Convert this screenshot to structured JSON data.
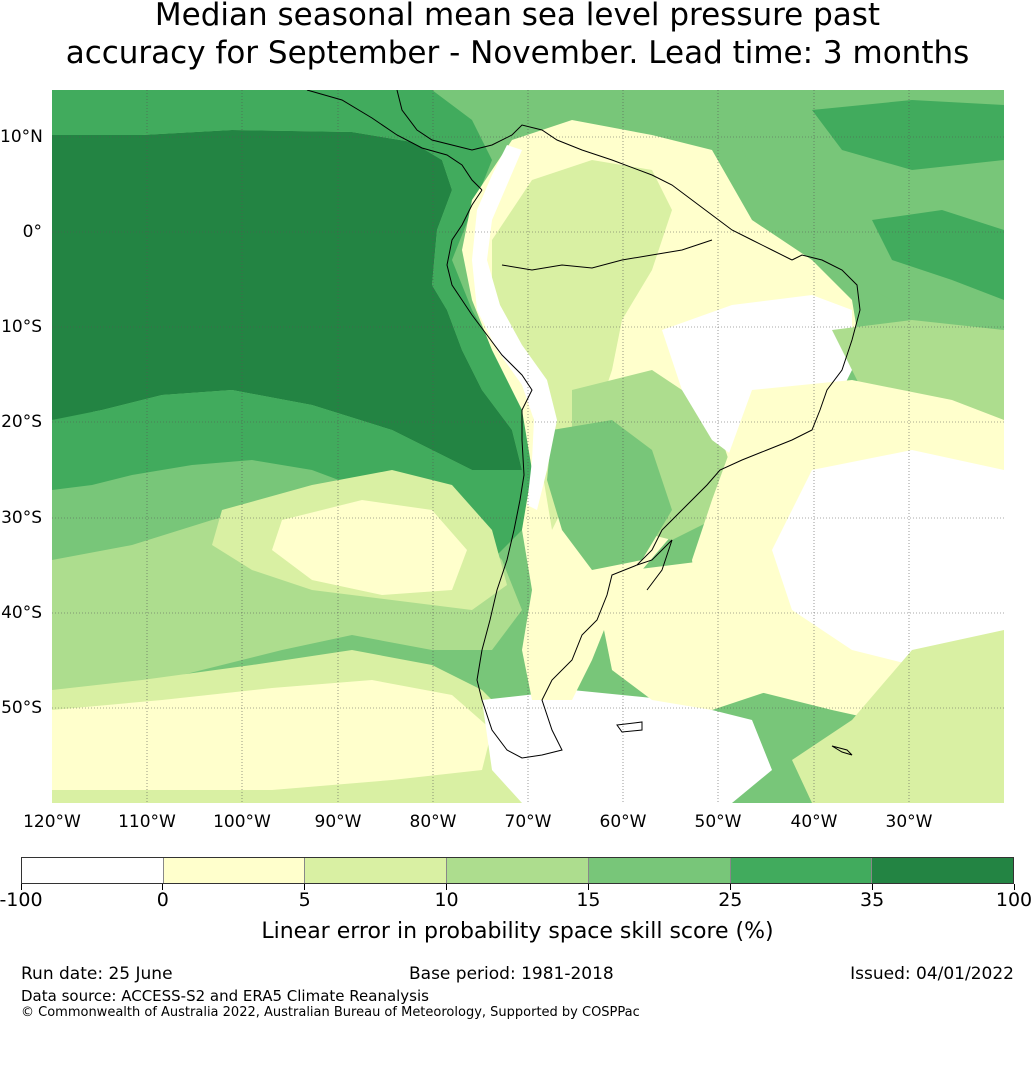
{
  "title": {
    "line1": "Median seasonal mean sea level pressure past",
    "line2": "accuracy for September - November. Lead time: 3 months"
  },
  "map": {
    "lat_labels": [
      "10°N",
      "0°",
      "10°S",
      "20°S",
      "30°S",
      "40°S",
      "50°S"
    ],
    "lon_labels": [
      "120°W",
      "110°W",
      "100°W",
      "90°W",
      "80°W",
      "70°W",
      "60°W",
      "50°W",
      "40°W",
      "30°W"
    ],
    "extent": {
      "lon_min": -120,
      "lon_max": -20,
      "lat_min": -60,
      "lat_max": 15
    },
    "palette": [
      "#ffffff",
      "#ffffcc",
      "#d9f0a3",
      "#addd8e",
      "#78c679",
      "#41ab5d",
      "#238443"
    ]
  },
  "colorbar": {
    "labels": [
      "-100",
      "0",
      "5",
      "10",
      "15",
      "25",
      "35",
      "100"
    ],
    "colors": [
      "#ffffff",
      "#ffffcc",
      "#d9f0a3",
      "#addd8e",
      "#78c679",
      "#41ab5d",
      "#238443"
    ],
    "title": "Linear error in probability space skill score (%)"
  },
  "footer": {
    "run_date": "Run date: 25 June",
    "base_period": "Base period: 1981-2018",
    "issued": "Issued: 04/01/2022",
    "data_source": "Data source: ACCESS-S2 and ERA5 Climate Reanalysis",
    "copyright": "© Commonwealth of Australia 2022, Australian Bureau of Meteorology, Supported by COSPPac"
  }
}
